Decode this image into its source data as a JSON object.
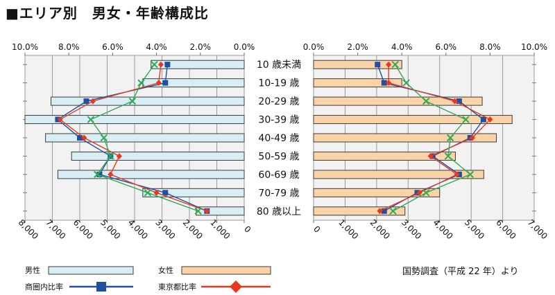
{
  "title": "■エリア別　男女・年齢構成比",
  "source_note": "国勢調査（平成 22 年）より",
  "chart_data": {
    "type": "bar",
    "categories": [
      "10 歳未満",
      "10-19 歳",
      "20-29 歳",
      "30-39 歳",
      "40-49 歳",
      "50-59 歳",
      "60-69 歳",
      "70-79 歳",
      "80 歳以上"
    ],
    "male": {
      "count_axis_ticks": [
        "8,000",
        "7,000",
        "6,000",
        "5,000",
        "4,000",
        "3,000",
        "2,000",
        "1,000",
        "0"
      ],
      "pct_axis_ticks": [
        "10.0%",
        "8.0%",
        "6.0%",
        "4.0%",
        "2.0%",
        "0.0%"
      ],
      "count_range": [
        0,
        8000
      ],
      "pct_range": [
        0,
        10
      ],
      "bar_series": {
        "name": "男性",
        "values": [
          3400,
          3700,
          7050,
          8000,
          7250,
          6300,
          6800,
          3700,
          1750
        ],
        "color": "#d8eef4"
      },
      "line_series": [
        {
          "name": "商圏内比率",
          "values": [
            3.5,
            3.6,
            7.2,
            8.5,
            7.5,
            6.1,
            6.6,
            3.6,
            1.7
          ],
          "color": "#1f4ea3",
          "marker": "square"
        },
        {
          "name": "東京都比率",
          "values": [
            3.8,
            3.9,
            6.9,
            8.4,
            7.3,
            5.7,
            6.1,
            4.0,
            1.7
          ],
          "color": "#e8391f",
          "marker": "diamond"
        },
        {
          "name": "",
          "values": [
            4.1,
            4.7,
            5.1,
            7.0,
            6.4,
            6.1,
            6.7,
            4.4,
            2.1
          ],
          "color": "#2eab54",
          "marker": "x"
        }
      ]
    },
    "female": {
      "count_axis_ticks": [
        "0",
        "1,000",
        "2,000",
        "3,000",
        "4,000",
        "5,000",
        "6,000",
        "7,000"
      ],
      "pct_axis_ticks": [
        "0.0%",
        "2.0%",
        "4.0%",
        "6.0%",
        "8.0%",
        "10.0%"
      ],
      "count_range": [
        0,
        7000
      ],
      "pct_range": [
        0,
        10
      ],
      "bar_series": {
        "name": "女性",
        "values": [
          2800,
          2800,
          5350,
          6300,
          5800,
          4500,
          5400,
          4000,
          2900
        ],
        "color": "#fad3a8"
      },
      "line_series": [
        {
          "name": "商圏内比率",
          "values": [
            2.9,
            3.2,
            6.6,
            7.7,
            7.1,
            5.4,
            6.6,
            4.7,
            3.2
          ],
          "color": "#1f4ea3",
          "marker": "square"
        },
        {
          "name": "東京都比率",
          "values": [
            3.4,
            3.4,
            6.4,
            8.0,
            7.2,
            5.3,
            6.5,
            4.8,
            3.0
          ],
          "color": "#e8391f",
          "marker": "diamond"
        },
        {
          "name": "",
          "values": [
            3.7,
            4.2,
            5.1,
            6.9,
            6.2,
            6.1,
            7.1,
            5.1,
            3.6
          ],
          "color": "#2eab54",
          "marker": "x"
        }
      ]
    },
    "legend": {
      "male_label": "男性",
      "female_label": "女性",
      "line1_label": "商圏内比率",
      "line2_label": "東京都比率"
    },
    "grid": true
  }
}
